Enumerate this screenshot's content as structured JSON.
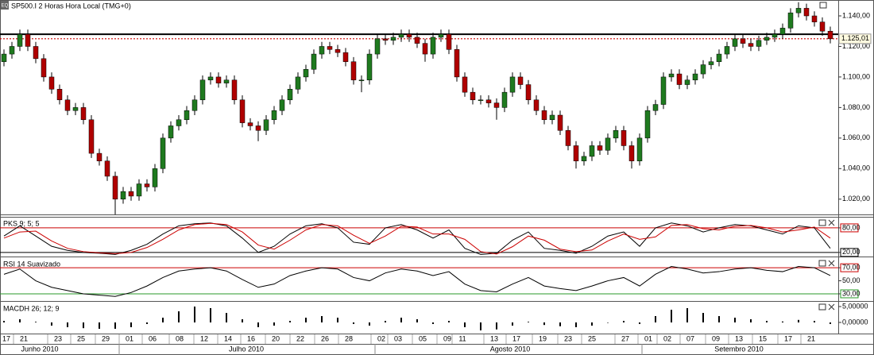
{
  "chart_data": [
    {
      "type": "candlestick",
      "title": "SP500.I 2 Horas Hora Local (TMG+0)",
      "up_color": "#1f7a1f",
      "down_color": "#b00000",
      "ohlc": [
        [
          1110,
          1118,
          1107,
          1115
        ],
        [
          1115,
          1123,
          1112,
          1120
        ],
        [
          1120,
          1131,
          1117,
          1128
        ],
        [
          1128,
          1131,
          1117,
          1120
        ],
        [
          1120,
          1123,
          1109,
          1112
        ],
        [
          1112,
          1115,
          1097,
          1100
        ],
        [
          1100,
          1103,
          1089,
          1092
        ],
        [
          1092,
          1095,
          1082,
          1085
        ],
        [
          1085,
          1088,
          1075,
          1078
        ],
        [
          1078,
          1083,
          1075,
          1080
        ],
        [
          1080,
          1083,
          1069,
          1072
        ],
        [
          1072,
          1075,
          1047,
          1050
        ],
        [
          1050,
          1053,
          1042,
          1045
        ],
        [
          1045,
          1048,
          1032,
          1035
        ],
        [
          1035,
          1038,
          1010,
          1020
        ],
        [
          1020,
          1028,
          1017,
          1025
        ],
        [
          1025,
          1028,
          1019,
          1022
        ],
        [
          1022,
          1033,
          1019,
          1030
        ],
        [
          1030,
          1033,
          1025,
          1028
        ],
        [
          1028,
          1043,
          1025,
          1040
        ],
        [
          1040,
          1063,
          1037,
          1060
        ],
        [
          1060,
          1071,
          1057,
          1068
        ],
        [
          1068,
          1075,
          1065,
          1072
        ],
        [
          1072,
          1081,
          1069,
          1078
        ],
        [
          1078,
          1088,
          1075,
          1085
        ],
        [
          1085,
          1101,
          1082,
          1098
        ],
        [
          1098,
          1103,
          1095,
          1100
        ],
        [
          1100,
          1103,
          1093,
          1096
        ],
        [
          1096,
          1101,
          1093,
          1098
        ],
        [
          1098,
          1101,
          1082,
          1085
        ],
        [
          1085,
          1088,
          1067,
          1070
        ],
        [
          1070,
          1073,
          1065,
          1068
        ],
        [
          1068,
          1071,
          1058,
          1065
        ],
        [
          1065,
          1075,
          1062,
          1072
        ],
        [
          1072,
          1081,
          1069,
          1078
        ],
        [
          1078,
          1088,
          1075,
          1085
        ],
        [
          1085,
          1095,
          1082,
          1092
        ],
        [
          1092,
          1103,
          1089,
          1100
        ],
        [
          1100,
          1108,
          1097,
          1105
        ],
        [
          1105,
          1118,
          1102,
          1115
        ],
        [
          1115,
          1123,
          1112,
          1120
        ],
        [
          1120,
          1123,
          1115,
          1118
        ],
        [
          1118,
          1121,
          1113,
          1116
        ],
        [
          1116,
          1119,
          1107,
          1110
        ],
        [
          1110,
          1113,
          1095,
          1098
        ],
        [
          1098,
          1101,
          1090,
          1098
        ],
        [
          1098,
          1118,
          1095,
          1115
        ],
        [
          1115,
          1128,
          1112,
          1125
        ],
        [
          1125,
          1128,
          1121,
          1124
        ],
        [
          1124,
          1129,
          1121,
          1126
        ],
        [
          1126,
          1131,
          1123,
          1128
        ],
        [
          1128,
          1131,
          1123,
          1126
        ],
        [
          1126,
          1129,
          1119,
          1122
        ],
        [
          1122,
          1125,
          1110,
          1115
        ],
        [
          1115,
          1129,
          1112,
          1126
        ],
        [
          1126,
          1131,
          1123,
          1128
        ],
        [
          1128,
          1131,
          1115,
          1118
        ],
        [
          1118,
          1121,
          1097,
          1100
        ],
        [
          1100,
          1103,
          1087,
          1090
        ],
        [
          1090,
          1093,
          1082,
          1085
        ],
        [
          1085,
          1088,
          1082,
          1085
        ],
        [
          1085,
          1088,
          1080,
          1083
        ],
        [
          1083,
          1086,
          1072,
          1080
        ],
        [
          1080,
          1093,
          1077,
          1090
        ],
        [
          1090,
          1103,
          1087,
          1100
        ],
        [
          1100,
          1103,
          1092,
          1095
        ],
        [
          1095,
          1098,
          1082,
          1085
        ],
        [
          1085,
          1088,
          1075,
          1078
        ],
        [
          1078,
          1081,
          1069,
          1072
        ],
        [
          1072,
          1078,
          1069,
          1075
        ],
        [
          1075,
          1078,
          1062,
          1065
        ],
        [
          1065,
          1068,
          1052,
          1055
        ],
        [
          1055,
          1058,
          1040,
          1045
        ],
        [
          1045,
          1051,
          1042,
          1048
        ],
        [
          1048,
          1058,
          1045,
          1055
        ],
        [
          1055,
          1058,
          1049,
          1052
        ],
        [
          1052,
          1063,
          1049,
          1060
        ],
        [
          1060,
          1068,
          1057,
          1065
        ],
        [
          1065,
          1068,
          1052,
          1055
        ],
        [
          1055,
          1058,
          1040,
          1045
        ],
        [
          1045,
          1063,
          1042,
          1060
        ],
        [
          1060,
          1081,
          1057,
          1078
        ],
        [
          1078,
          1085,
          1075,
          1082
        ],
        [
          1082,
          1103,
          1079,
          1100
        ],
        [
          1100,
          1105,
          1097,
          1102
        ],
        [
          1102,
          1105,
          1092,
          1095
        ],
        [
          1095,
          1101,
          1092,
          1098
        ],
        [
          1098,
          1105,
          1095,
          1102
        ],
        [
          1102,
          1111,
          1099,
          1108
        ],
        [
          1108,
          1113,
          1105,
          1110
        ],
        [
          1110,
          1118,
          1107,
          1115
        ],
        [
          1115,
          1123,
          1112,
          1120
        ],
        [
          1120,
          1128,
          1117,
          1125
        ],
        [
          1125,
          1128,
          1119,
          1122
        ],
        [
          1122,
          1125,
          1117,
          1120
        ],
        [
          1120,
          1127,
          1117,
          1124
        ],
        [
          1124,
          1129,
          1121,
          1126
        ],
        [
          1126,
          1131,
          1123,
          1128
        ],
        [
          1128,
          1135,
          1125,
          1132
        ],
        [
          1132,
          1145,
          1129,
          1142
        ],
        [
          1142,
          1149,
          1139,
          1145
        ],
        [
          1145,
          1148,
          1137,
          1140
        ],
        [
          1140,
          1143,
          1133,
          1136
        ],
        [
          1136,
          1139,
          1127,
          1130
        ],
        [
          1130,
          1133,
          1122,
          1125
        ]
      ],
      "ylim": [
        1010,
        1150.4
      ],
      "yticks": [
        {
          "value": 1140,
          "label": "1.140,00"
        },
        {
          "value": 1120,
          "label": "1.120,00"
        },
        {
          "value": 1100,
          "label": "1.100,00"
        },
        {
          "value": 1080,
          "label": "1.080,00"
        },
        {
          "value": 1060,
          "label": "1.060,00"
        },
        {
          "value": 1040,
          "label": "1.040,00"
        },
        {
          "value": 1020,
          "label": "1.020,00"
        }
      ],
      "lines": [
        {
          "value": 1128,
          "color": "#000000"
        },
        {
          "value": 1125.01,
          "color": "#cc0000",
          "label": "1.125,01"
        }
      ]
    },
    {
      "type": "line",
      "title": "PKS 9; 5; 5",
      "ylim": [
        10,
        107
      ],
      "series": [
        {
          "color": "#000000",
          "values": [
            60,
            85,
            60,
            35,
            25,
            20,
            18,
            15,
            25,
            40,
            65,
            85,
            90,
            92,
            85,
            55,
            20,
            35,
            65,
            85,
            90,
            80,
            45,
            40,
            80,
            88,
            75,
            55,
            75,
            30,
            15,
            18,
            50,
            70,
            30,
            25,
            18,
            35,
            60,
            70,
            35,
            80,
            92,
            85,
            70,
            80,
            88,
            85,
            75,
            65,
            85,
            80,
            30
          ]
        },
        {
          "color": "#cc0000",
          "values": [
            55,
            70,
            72,
            48,
            30,
            22,
            19,
            17,
            20,
            32,
            52,
            75,
            88,
            91,
            88,
            70,
            38,
            28,
            50,
            75,
            88,
            85,
            62,
            42,
            60,
            84,
            82,
            65,
            65,
            52,
            22,
            16,
            34,
            60,
            50,
            28,
            22,
            26,
            48,
            65,
            52,
            58,
            86,
            88,
            78,
            75,
            84,
            86,
            80,
            70,
            75,
            82,
            55
          ]
        }
      ],
      "yticks": [
        {
          "value": 80,
          "label": "80,00",
          "color": "#cc0000"
        },
        {
          "value": 20,
          "label": "20,00",
          "color": "#000000"
        }
      ]
    },
    {
      "type": "line",
      "title": "RSI 14 Suavizado",
      "ylim": [
        19,
        86
      ],
      "series": [
        {
          "color": "#000000",
          "values": [
            60,
            68,
            50,
            40,
            35,
            30,
            28,
            26,
            32,
            42,
            55,
            65,
            68,
            70,
            65,
            52,
            40,
            45,
            58,
            65,
            70,
            68,
            55,
            50,
            62,
            68,
            65,
            58,
            64,
            45,
            35,
            33,
            45,
            55,
            42,
            38,
            35,
            42,
            50,
            55,
            42,
            60,
            72,
            68,
            62,
            64,
            68,
            70,
            66,
            64,
            72,
            70,
            58
          ]
        }
      ],
      "yticks": [
        {
          "value": 70,
          "label": "70,00",
          "color": "#cc0000"
        },
        {
          "value": 50,
          "label": "50,00"
        },
        {
          "value": 30,
          "label": "30,00",
          "color": "#2a9a2a"
        }
      ]
    },
    {
      "type": "bar",
      "title": "MACDH 26; 12; 9",
      "color": "#000000",
      "ylim": [
        -3.5,
        6.5
      ],
      "values": [
        0.5,
        1,
        0.2,
        -1,
        -1.5,
        -1.8,
        -2,
        -2,
        -1.5,
        -0.5,
        1.5,
        3.5,
        5,
        4.5,
        3,
        1,
        -1.5,
        -1,
        0.5,
        1.5,
        2,
        1.5,
        -0.5,
        -1,
        0.5,
        1.5,
        1,
        -0.5,
        0.5,
        -1.5,
        -2.5,
        -2.2,
        -1,
        0.2,
        -0.8,
        -1.2,
        -1.5,
        -1,
        0,
        0.5,
        -0.5,
        2,
        4,
        4.5,
        3,
        2,
        1.5,
        1,
        0.5,
        0.3,
        0.8,
        0.5,
        -0.5
      ],
      "yticks": [
        {
          "value": 5,
          "label": "5,00000"
        },
        {
          "value": 0,
          "label": "0,00000"
        }
      ]
    }
  ],
  "x_axis": {
    "days": [
      "17",
      "21",
      "23",
      "25",
      "29",
      "01",
      "06",
      "08",
      "12",
      "14",
      "16",
      "20",
      "22",
      "26",
      "28",
      "02",
      "03",
      "05",
      "09",
      "11",
      "13",
      "17",
      "19",
      "23",
      "25",
      "27",
      "01",
      "02",
      "07",
      "09",
      "13",
      "15",
      "17",
      "21"
    ],
    "months": [
      "Junho 2010",
      "Julho 2010",
      "Agosto 2010",
      "Setembro 2010"
    ]
  }
}
